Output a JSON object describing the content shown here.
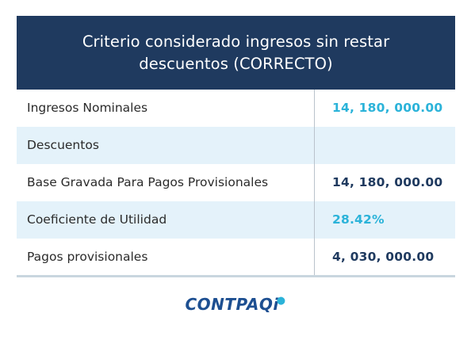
{
  "header": {
    "line1": "Criterio considerado ingresos sin restar",
    "line2": "descuentos (CORRECTO)",
    "background": "#1f3a5f"
  },
  "rows": [
    {
      "label": "Ingresos Nominales",
      "value": "14, 180, 000.00",
      "value_color": "#2bb3d9"
    },
    {
      "label": "Descuentos",
      "value": ""
    },
    {
      "label": "Base Gravada Para Pagos Provisionales",
      "value": "14, 180, 000.00",
      "value_color": "#1f3a5f"
    },
    {
      "label": "Coeficiente de Utilidad",
      "value": "28.42%",
      "value_color": "#2bb3d9"
    },
    {
      "label": "Pagos provisionales",
      "value": "4, 030, 000.00",
      "value_color": "#1f3a5f"
    }
  ],
  "logo": {
    "text": "CONTPAQ",
    "suffix": "i",
    "brand_color": "#1d4f91",
    "accent_color": "#2bb3d9"
  },
  "colors": {
    "row_shade": "#e4f2fa"
  }
}
